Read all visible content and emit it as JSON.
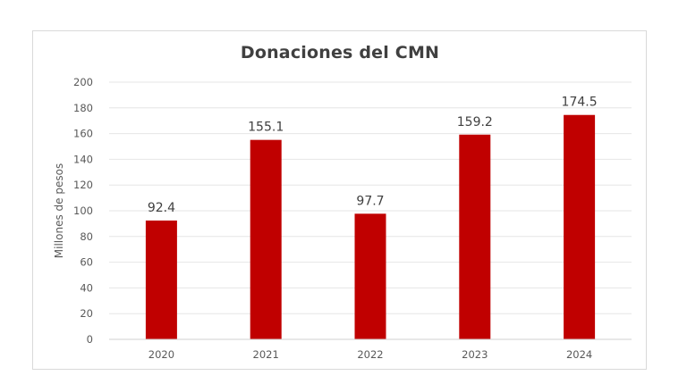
{
  "chart_data": {
    "type": "bar",
    "title": "Donaciones del CMN",
    "xlabel": "",
    "ylabel": "Millones de pesos",
    "categories": [
      "2020",
      "2021",
      "2022",
      "2023",
      "2024"
    ],
    "values": [
      92.4,
      155.1,
      97.7,
      159.2,
      174.5
    ],
    "data_labels": [
      "92.4",
      "155.1",
      "97.7",
      "159.2",
      "174.5"
    ],
    "ylim": [
      0,
      200
    ],
    "yticks": [
      0,
      20,
      40,
      60,
      80,
      100,
      120,
      140,
      160,
      180,
      200
    ],
    "grid": true,
    "legend": "none",
    "bar_color": "#c00000",
    "grid_color": "#e6e6e6",
    "axis_color": "#d0d0d0"
  }
}
